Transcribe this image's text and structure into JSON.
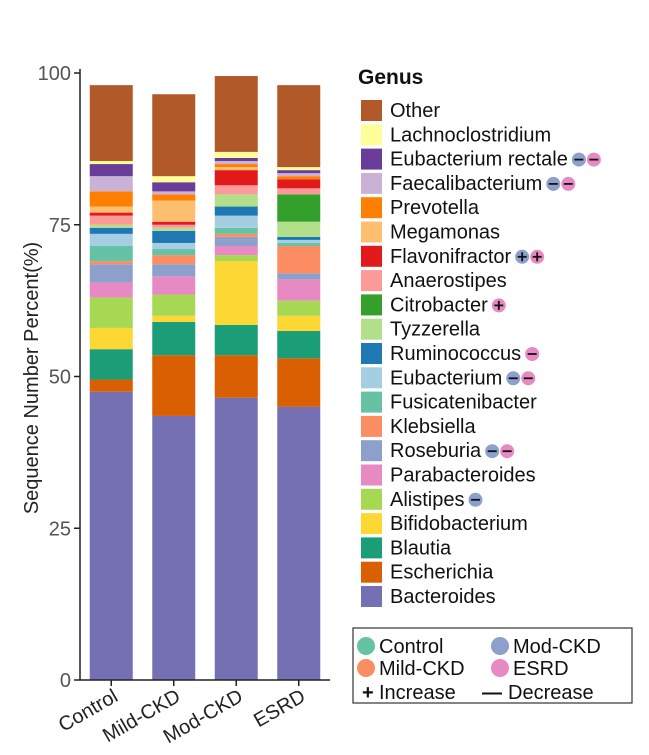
{
  "chart_data": {
    "type": "bar",
    "stacked": true,
    "categories": [
      "Control",
      "Mild-CKD",
      "Mod-CKD",
      "ESRD"
    ],
    "ylabel": "Sequence Number Percent(%)",
    "xlabel": "",
    "ylim": [
      0,
      100
    ],
    "yticks": [
      "0",
      "25",
      "50",
      "75",
      "100"
    ],
    "legend_title": "Genus",
    "legend_position": "right",
    "series": [
      {
        "name": "Bacteroides",
        "color": "#7570b3",
        "values": [
          47.5,
          43.5,
          46.5,
          45.0
        ],
        "markers": []
      },
      {
        "name": "Escherichia",
        "color": "#d95f02",
        "values": [
          2.0,
          10.0,
          7.0,
          8.0
        ],
        "markers": []
      },
      {
        "name": "Blautia",
        "color": "#1b9e77",
        "values": [
          5.0,
          5.5,
          5.0,
          4.5
        ],
        "markers": []
      },
      {
        "name": "Bifidobacterium",
        "color": "#fdd835",
        "values": [
          3.5,
          1.0,
          10.5,
          2.5
        ],
        "markers": []
      },
      {
        "name": "Alistipes",
        "color": "#a6d854",
        "values": [
          5.0,
          3.5,
          1.0,
          2.5
        ],
        "markers": [
          {
            "sign": "-",
            "group": "Mod-CKD"
          }
        ]
      },
      {
        "name": "Parabacteroides",
        "color": "#e78ac3",
        "values": [
          2.5,
          3.0,
          1.5,
          3.5
        ],
        "markers": []
      },
      {
        "name": "Roseburia",
        "color": "#8da0cb",
        "values": [
          3.0,
          2.0,
          1.5,
          1.0
        ],
        "markers": [
          {
            "sign": "-",
            "group": "Mod-CKD"
          },
          {
            "sign": "-",
            "group": "ESRD"
          }
        ]
      },
      {
        "name": "Klebsiella",
        "color": "#fc8d62",
        "values": [
          0.5,
          1.5,
          0.5,
          4.5
        ],
        "markers": []
      },
      {
        "name": "Fusicatenibacter",
        "color": "#66c2a5",
        "values": [
          2.5,
          1.0,
          1.0,
          0.5
        ],
        "markers": []
      },
      {
        "name": "Eubacterium",
        "color": "#a6cee3",
        "values": [
          2.0,
          1.0,
          2.0,
          0.5
        ],
        "markers": [
          {
            "sign": "-",
            "group": "Mod-CKD"
          },
          {
            "sign": "-",
            "group": "ESRD"
          }
        ]
      },
      {
        "name": "Ruminococcus",
        "color": "#1f78b4",
        "values": [
          1.0,
          2.0,
          1.5,
          0.5
        ],
        "markers": [
          {
            "sign": "-",
            "group": "ESRD"
          }
        ]
      },
      {
        "name": "Tyzzerella",
        "color": "#b2df8a",
        "values": [
          0.5,
          0.5,
          2.0,
          2.5
        ],
        "markers": []
      },
      {
        "name": "Citrobacter",
        "color": "#33a02c",
        "values": [
          0.0,
          0.0,
          0.0,
          4.5
        ],
        "markers": [
          {
            "sign": "+",
            "group": "ESRD"
          }
        ]
      },
      {
        "name": "Anaerostipes",
        "color": "#fb9a99",
        "values": [
          1.5,
          0.5,
          1.5,
          1.0
        ],
        "markers": []
      },
      {
        "name": "Flavonifractor",
        "color": "#e31a1c",
        "values": [
          0.5,
          0.5,
          2.5,
          1.5
        ],
        "markers": [
          {
            "sign": "+",
            "group": "Mod-CKD"
          },
          {
            "sign": "+",
            "group": "ESRD"
          }
        ]
      },
      {
        "name": "Megamonas",
        "color": "#fdbf6f",
        "values": [
          1.0,
          3.5,
          0.5,
          0.0
        ],
        "markers": []
      },
      {
        "name": "Prevotella",
        "color": "#ff7f00",
        "values": [
          2.5,
          1.0,
          0.5,
          0.5
        ],
        "markers": []
      },
      {
        "name": "Faecalibacterium",
        "color": "#cab2d6",
        "values": [
          2.5,
          0.5,
          0.5,
          0.5
        ],
        "markers": [
          {
            "sign": "-",
            "group": "Mod-CKD"
          },
          {
            "sign": "-",
            "group": "ESRD"
          }
        ]
      },
      {
        "name": "Eubacterium rectale",
        "color": "#6a3d9a",
        "values": [
          2.0,
          1.5,
          0.5,
          0.5
        ],
        "markers": [
          {
            "sign": "-",
            "group": "Mod-CKD"
          },
          {
            "sign": "-",
            "group": "ESRD"
          }
        ]
      },
      {
        "name": "Lachnoclostridium",
        "color": "#ffff99",
        "values": [
          0.5,
          1.0,
          1.0,
          0.5
        ],
        "markers": []
      },
      {
        "name": "Other",
        "color": "#b15928",
        "values": [
          12.5,
          13.5,
          12.5,
          13.5
        ],
        "markers": []
      }
    ],
    "group_key": [
      {
        "name": "Control",
        "color": "#66c2a5"
      },
      {
        "name": "Mod-CKD",
        "color": "#8da0cb"
      },
      {
        "name": "Mild-CKD",
        "color": "#fc8d62"
      },
      {
        "name": "ESRD",
        "color": "#e78ac3"
      }
    ],
    "sign_key": [
      {
        "symbol": "+",
        "label": "Increase"
      },
      {
        "symbol": "—",
        "label": "Decrease"
      }
    ]
  }
}
